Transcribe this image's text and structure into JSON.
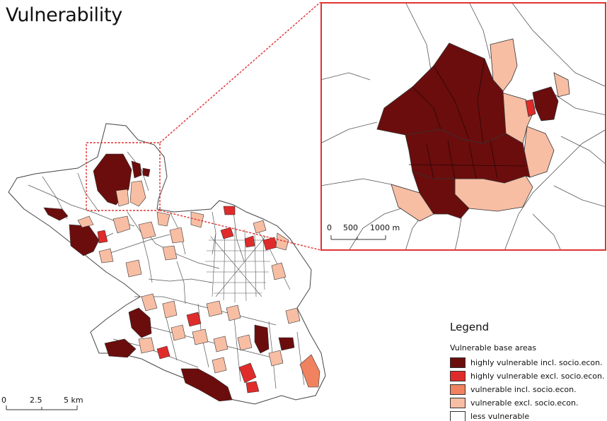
{
  "title": "Vulnerability",
  "colors": {
    "highly_incl": "#6b0d0d",
    "highly_excl": "#e02b2b",
    "vulnerable_incl": "#f08260",
    "vulnerable_excl": "#f7bea4",
    "less": "#ffffff",
    "boundary": "#555555",
    "inset_frame": "#e03333"
  },
  "legend": {
    "title": "Legend",
    "subtitle": "Vulnerable base areas",
    "items": [
      {
        "label": "highly vulnerable incl. socio.econ.",
        "color": "#6b0d0d"
      },
      {
        "label": "highly vulnerable excl. socio.econ.",
        "color": "#e02b2b"
      },
      {
        "label": "vulnerable incl. socio.econ.",
        "color": "#f08260"
      },
      {
        "label": "vulnerable excl. socio.econ.",
        "color": "#f7bea4"
      },
      {
        "label": "less vulnerable",
        "color": "#ffffff"
      }
    ]
  },
  "main_scale": {
    "ticks": [
      "0",
      "2.5",
      "5 km"
    ]
  },
  "inset_scale": {
    "ticks": [
      "0",
      "500",
      "1000 m"
    ]
  }
}
